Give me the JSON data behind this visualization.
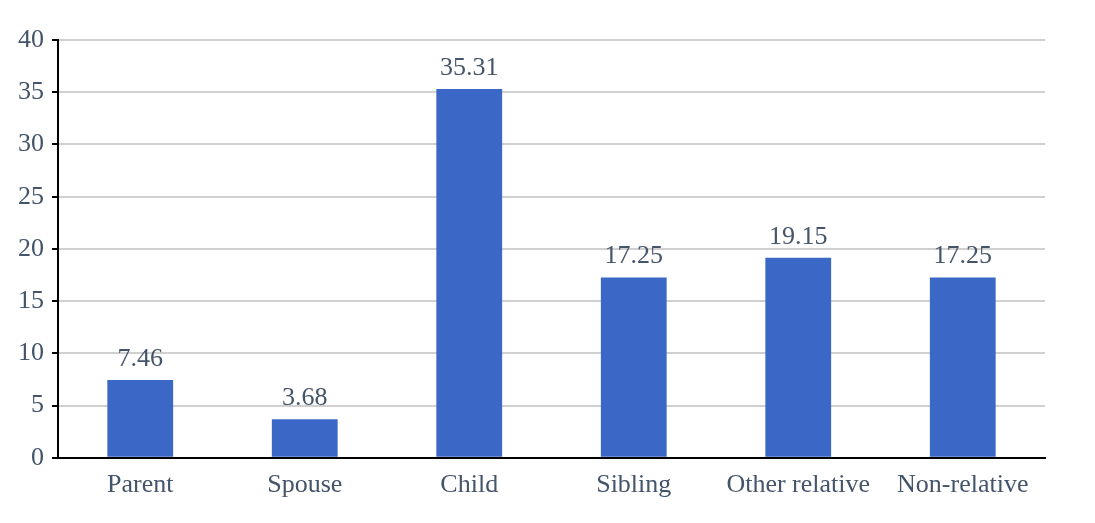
{
  "chart_data": {
    "type": "bar",
    "categories": [
      "Parent",
      "Spouse",
      "Child",
      "Sibling",
      "Other relative",
      "Non-relative"
    ],
    "values": [
      7.46,
      3.68,
      35.31,
      17.25,
      19.15,
      17.25
    ],
    "color": "#3b68c6",
    "ylim": [
      0,
      40
    ],
    "yticks": [
      0,
      5,
      10,
      15,
      20,
      25,
      30,
      35,
      40
    ],
    "grid": "y",
    "data_labels": true,
    "legend": false
  }
}
